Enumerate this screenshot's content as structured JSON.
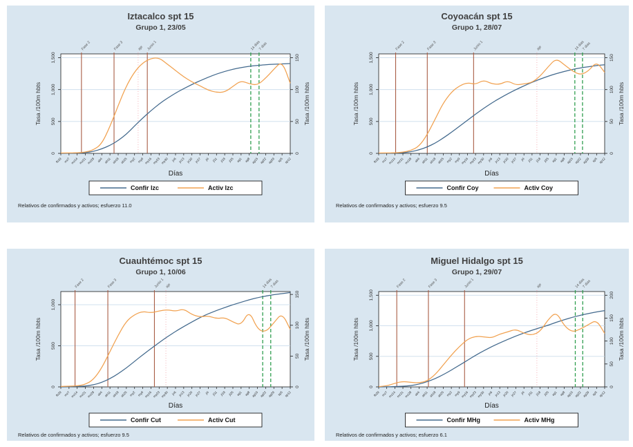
{
  "figure": {
    "description": "Cuatro gráficas de líneas (estilo Stata) de tasas de confirmados y activos por alcaldía",
    "colors": {
      "panel_bg": "#d9e6f0",
      "plot_bg": "#ffffff",
      "grid": "#c9dceb",
      "axis": "#1a1a1a",
      "title_text": "#3f3f3f",
      "confirmed_line": "#41688c",
      "active_line": "#f1a14f",
      "phase_line": "#a85c44",
      "peak_line": "#f2a7ae",
      "cutoff_line": "#2f9e4f"
    }
  },
  "chart_data": [
    {
      "type": "line",
      "title": "Iztacalco spt 15",
      "subtitle": "Grupo 1,  23/05",
      "xlabel": "Días",
      "ylabel_left": "Tasa /100m hbts",
      "ylabel_right": "Tasa /100m hbts",
      "grid": true,
      "legend_position": "bottom",
      "footnote": "Relativos de confirmados y activos; esfuerzo 11.0",
      "x": [
        "fb29",
        "mz7",
        "mz14",
        "mz21",
        "mz28",
        "ab4",
        "ab11",
        "ab18",
        "ab25",
        "my2",
        "my9",
        "my16",
        "my23",
        "my30",
        "jn6",
        "jn13",
        "jn20",
        "jn27",
        "jl4",
        "jl11",
        "jl18",
        "jl25",
        "ag1",
        "ag8",
        "ag15",
        "ag22",
        "ag29",
        "sp5",
        "sp12"
      ],
      "ylim_left": [
        0,
        1560
      ],
      "ytick_values_left": [
        0,
        500,
        1000,
        1500
      ],
      "yticks_left": [
        "0",
        "500",
        "1,000",
        "1,500"
      ],
      "ytick_values_right": [
        0,
        50,
        100,
        150
      ],
      "yticks_right": [
        "0",
        "50",
        "100",
        "150"
      ],
      "right_scale": 10,
      "series": [
        {
          "name": "Confir Izc",
          "color": "#41688c",
          "values": [
            0,
            2,
            5,
            12,
            30,
            70,
            125,
            200,
            300,
            430,
            555,
            670,
            775,
            865,
            945,
            1015,
            1080,
            1140,
            1195,
            1245,
            1285,
            1320,
            1345,
            1365,
            1380,
            1390,
            1398,
            1403,
            1408
          ]
        },
        {
          "name": "Activ Izc",
          "color": "#f1a14f",
          "values": [
            5,
            7,
            10,
            18,
            55,
            150,
            420,
            750,
            1060,
            1280,
            1420,
            1490,
            1500,
            1400,
            1300,
            1200,
            1120,
            1060,
            990,
            955,
            960,
            1050,
            1140,
            1090,
            1070,
            1180,
            1320,
            1450,
            1100
          ]
        }
      ],
      "reference_lines": [
        {
          "label": "Fase 2",
          "frac": 0.09,
          "kind": "phase"
        },
        {
          "label": "Fase 3",
          "frac": 0.232,
          "kind": "phase"
        },
        {
          "label": "aje",
          "frac": 0.337,
          "kind": "peak"
        },
        {
          "label": "Junio 1",
          "frac": 0.377,
          "kind": "phase"
        },
        {
          "label": "14 dias",
          "frac": 0.828,
          "kind": "cutoff"
        },
        {
          "label": "7 dias",
          "frac": 0.864,
          "kind": "cutoff"
        }
      ]
    },
    {
      "type": "line",
      "title": "Coyoacán spt 15",
      "subtitle": "Grupo 1,  28/07",
      "xlabel": "Días",
      "ylabel_left": "Tasa /100m hbts",
      "ylabel_right": "Tasa /100m hbts",
      "grid": true,
      "legend_position": "bottom",
      "footnote": "Relativos de confirmados y activos; esfuerzo 9.5",
      "x": [
        "fb29",
        "mz7",
        "mz14",
        "mz21",
        "mz28",
        "ab4",
        "ab11",
        "ab18",
        "ab25",
        "my2",
        "my9",
        "my16",
        "my23",
        "my30",
        "jn6",
        "jn13",
        "jn20",
        "jn27",
        "jl4",
        "jl11",
        "jl18",
        "jl25",
        "ag1",
        "ag8",
        "ag15",
        "ag22",
        "ag29",
        "sp5",
        "sp12"
      ],
      "ylim_left": [
        0,
        1560
      ],
      "ytick_values_left": [
        0,
        500,
        1000,
        1500
      ],
      "yticks_left": [
        "0",
        "500",
        "1,000",
        "1,500"
      ],
      "ytick_values_right": [
        0,
        50,
        100,
        150
      ],
      "yticks_right": [
        "0",
        "50",
        "100",
        "150"
      ],
      "right_scale": 10,
      "series": [
        {
          "name": "Confir Coy",
          "color": "#41688c",
          "values": [
            0,
            2,
            5,
            10,
            25,
            55,
            100,
            160,
            240,
            330,
            425,
            520,
            615,
            705,
            790,
            865,
            935,
            1000,
            1060,
            1115,
            1165,
            1210,
            1250,
            1285,
            1315,
            1340,
            1360,
            1378,
            1390
          ]
        },
        {
          "name": "Activ Coy",
          "color": "#f1a14f",
          "values": [
            5,
            7,
            10,
            18,
            45,
            110,
            290,
            540,
            790,
            960,
            1060,
            1110,
            1080,
            1150,
            1090,
            1080,
            1140,
            1070,
            1090,
            1110,
            1210,
            1360,
            1490,
            1390,
            1290,
            1230,
            1290,
            1440,
            1270
          ]
        }
      ],
      "reference_lines": [
        {
          "label": "Fase 2",
          "frac": 0.075,
          "kind": "phase"
        },
        {
          "label": "Fase 3",
          "frac": 0.215,
          "kind": "phase"
        },
        {
          "label": "Junio 1",
          "frac": 0.42,
          "kind": "phase"
        },
        {
          "label": "aje",
          "frac": 0.7,
          "kind": "peak"
        },
        {
          "label": "14 dias",
          "frac": 0.868,
          "kind": "cutoff"
        },
        {
          "label": "7 dias",
          "frac": 0.902,
          "kind": "cutoff"
        }
      ]
    },
    {
      "type": "line",
      "title": "Cuauhtémoc spt 15",
      "subtitle": "Grupo 1,  10/06",
      "xlabel": "Días",
      "ylabel_left": "Tasa /100m hbts",
      "ylabel_right": "Tasa /100m hbts",
      "grid": true,
      "legend_position": "bottom",
      "footnote": "Relativos de confirmados y activos; esfuerzo 9.5",
      "x": [
        "fb29",
        "mz7",
        "mz14",
        "mz21",
        "mz28",
        "ab4",
        "ab11",
        "ab18",
        "ab25",
        "my2",
        "my9",
        "my16",
        "my23",
        "my30",
        "jn6",
        "jn13",
        "jn20",
        "jn27",
        "jl4",
        "jl11",
        "jl18",
        "jl25",
        "ag1",
        "ag8",
        "ag15",
        "ag22",
        "ag29",
        "sp5",
        "sp12"
      ],
      "ylim_left": [
        0,
        1160
      ],
      "ytick_values_left": [
        0,
        500,
        1000
      ],
      "yticks_left": [
        "0",
        "500",
        "1,000"
      ],
      "ytick_values_right": [
        0,
        50,
        100,
        150
      ],
      "yticks_right": [
        "0",
        "50",
        "100",
        "150"
      ],
      "right_scale": 7.5,
      "series": [
        {
          "name": "Confir Cut",
          "color": "#41688c",
          "values": [
            0,
            2,
            5,
            10,
            25,
            55,
            100,
            160,
            230,
            310,
            390,
            465,
            540,
            610,
            675,
            735,
            790,
            845,
            890,
            930,
            965,
            1000,
            1030,
            1060,
            1085,
            1105,
            1122,
            1135,
            1148
          ]
        },
        {
          "name": "Activ Cut",
          "color": "#f1a14f",
          "values": [
            5,
            8,
            12,
            30,
            90,
            230,
            430,
            630,
            800,
            880,
            920,
            900,
            925,
            940,
            920,
            950,
            880,
            850,
            865,
            830,
            845,
            790,
            750,
            930,
            700,
            665,
            780,
            900,
            700
          ]
        }
      ],
      "reference_lines": [
        {
          "label": "Fase 2",
          "frac": 0.062,
          "kind": "phase"
        },
        {
          "label": "Fase 3",
          "frac": 0.205,
          "kind": "phase"
        },
        {
          "label": "Junio 1",
          "frac": 0.408,
          "kind": "phase"
        },
        {
          "label": "aje",
          "frac": 0.458,
          "kind": "peak"
        },
        {
          "label": "14 dias",
          "frac": 0.88,
          "kind": "cutoff"
        },
        {
          "label": "7 dias",
          "frac": 0.915,
          "kind": "cutoff"
        }
      ]
    },
    {
      "type": "line",
      "title": "Miguel Hidalgo spt 15",
      "subtitle": "Grupo 1,  29/07",
      "xlabel": "Días",
      "ylabel_left": "Tasa /100m hbts",
      "ylabel_right": "Tasa /100m hbts",
      "grid": true,
      "legend_position": "bottom",
      "footnote": "Relativos de confirmados y activos; esfuerzo 6.1",
      "x": [
        "fb29",
        "mz7",
        "mz14",
        "mz21",
        "mz28",
        "ab4",
        "ab11",
        "ab18",
        "ab25",
        "my2",
        "my9",
        "my16",
        "my23",
        "my30",
        "jn6",
        "jn13",
        "jn20",
        "jn27",
        "jl4",
        "jl11",
        "jl18",
        "jl25",
        "ag1",
        "ag8",
        "ag15",
        "ag22",
        "ag29",
        "sp5",
        "sp12"
      ],
      "ylim_left": [
        0,
        1560
      ],
      "ytick_values_left": [
        0,
        500,
        1000,
        1500
      ],
      "yticks_left": [
        "0",
        "500",
        "1,000",
        "1,500"
      ],
      "ytick_values_right": [
        0,
        50,
        100,
        150,
        200
      ],
      "yticks_right": [
        "0",
        "50",
        "100",
        "150",
        "200"
      ],
      "right_scale": 7.5,
      "series": [
        {
          "name": "Confir MHg",
          "color": "#41688c",
          "values": [
            0,
            2,
            5,
            10,
            20,
            45,
            85,
            135,
            200,
            275,
            355,
            435,
            515,
            590,
            658,
            720,
            778,
            832,
            882,
            928,
            970,
            1010,
            1058,
            1100,
            1140,
            1172,
            1200,
            1228,
            1248
          ]
        },
        {
          "name": "Activ MHg",
          "color": "#f1a14f",
          "values": [
            5,
            15,
            60,
            90,
            75,
            65,
            95,
            200,
            360,
            520,
            660,
            780,
            830,
            820,
            800,
            865,
            900,
            945,
            875,
            845,
            905,
            1105,
            1230,
            995,
            895,
            945,
            1020,
            1095,
            875
          ]
        }
      ],
      "reference_lines": [
        {
          "label": "Fase 2",
          "frac": 0.08,
          "kind": "phase"
        },
        {
          "label": "Fase 3",
          "frac": 0.22,
          "kind": "phase"
        },
        {
          "label": "Junio 1",
          "frac": 0.38,
          "kind": "phase"
        },
        {
          "label": "aje",
          "frac": 0.7,
          "kind": "peak"
        },
        {
          "label": "14 dias",
          "frac": 0.87,
          "kind": "cutoff"
        },
        {
          "label": "7 dias",
          "frac": 0.903,
          "kind": "cutoff"
        }
      ]
    }
  ]
}
